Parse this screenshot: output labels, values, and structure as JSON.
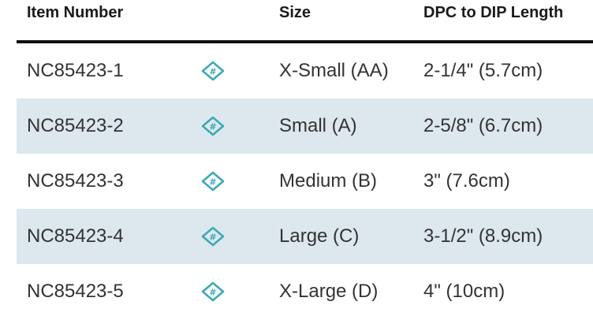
{
  "table": {
    "headers": {
      "item_number": "Item Number",
      "size": "Size",
      "length": "DPC to DIP Length"
    },
    "row_icon": "item-link-diamond-icon",
    "accent_color": "#3aa9b5",
    "shaded_row_color": "#dde7ee",
    "rows": [
      {
        "item": "NC85423-1",
        "size": "X-Small (AA)",
        "length": "2-1/4\" (5.7cm)"
      },
      {
        "item": "NC85423-2",
        "size": "Small (A)",
        "length": "2-5/8\" (6.7cm)"
      },
      {
        "item": "NC85423-3",
        "size": "Medium (B)",
        "length": "3\" (7.6cm)"
      },
      {
        "item": "NC85423-4",
        "size": "Large (C)",
        "length": "3-1/2\" (8.9cm)"
      },
      {
        "item": "NC85423-5",
        "size": "X-Large (D)",
        "length": "4\" (10cm)"
      }
    ]
  }
}
